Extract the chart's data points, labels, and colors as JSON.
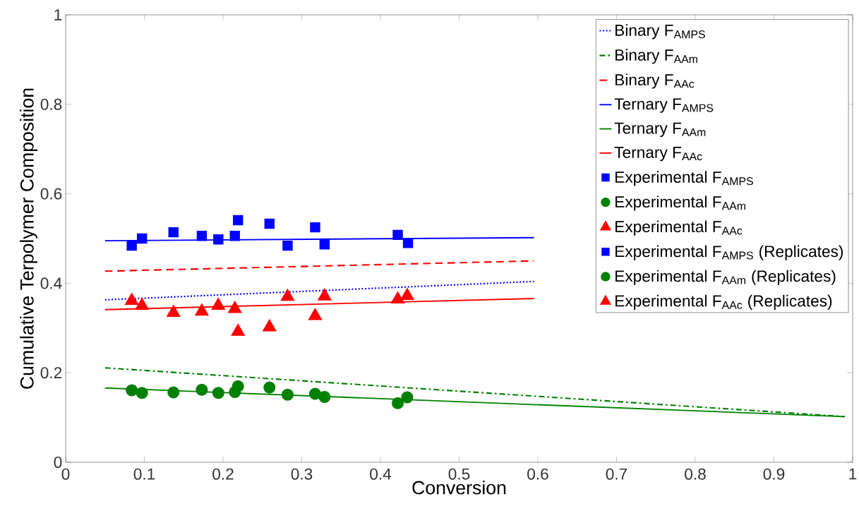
{
  "chart_data": {
    "type": "scatter",
    "xlabel": "Conversion",
    "ylabel": "Cumulative Terpolymer Composition",
    "xlim": [
      0,
      1
    ],
    "ylim": [
      0,
      1
    ],
    "xticks": [
      0,
      0.1,
      0.2,
      0.3,
      0.4,
      0.5,
      0.6,
      0.7,
      0.8,
      0.9,
      1
    ],
    "yticks": [
      0,
      0.2,
      0.4,
      0.6,
      0.8,
      1
    ],
    "grid": false,
    "legend": "top right",
    "series": [
      {
        "name": "Binary F$_{AMPS}$",
        "type": "line",
        "line_style": "dotted",
        "marker": "none",
        "color": "#0000ff",
        "x": [
          0.05,
          0.595
        ],
        "values": [
          0.363,
          0.404
        ]
      },
      {
        "name": "Binary F$_{AAm}$",
        "type": "line",
        "line_style": "dashdot",
        "marker": "none",
        "color": "#008000",
        "x": [
          0.05,
          0.99
        ],
        "values": [
          0.211,
          0.102
        ]
      },
      {
        "name": "Binary F$_{AAc}$",
        "type": "line",
        "line_style": "dashed",
        "marker": "none",
        "color": "#ff0000",
        "x": [
          0.05,
          0.595
        ],
        "values": [
          0.427,
          0.45
        ]
      },
      {
        "name": "Ternary F$_{AMPS}$",
        "type": "line",
        "line_style": "solid",
        "marker": "none",
        "color": "#0000ff",
        "x": [
          0.05,
          0.595
        ],
        "values": [
          0.495,
          0.502
        ]
      },
      {
        "name": "Ternary F$_{AAm}$",
        "type": "line",
        "line_style": "solid",
        "marker": "none",
        "color": "#008000",
        "x": [
          0.05,
          0.99
        ],
        "values": [
          0.166,
          0.102
        ]
      },
      {
        "name": "Ternary F$_{AAc}$",
        "type": "line",
        "line_style": "solid",
        "marker": "none",
        "color": "#ff0000",
        "x": [
          0.05,
          0.595
        ],
        "values": [
          0.341,
          0.366
        ]
      },
      {
        "name": "Experimental F$_{AMPS}$",
        "marker": "square",
        "color": "#0000ff",
        "x": [
          0.084,
          0.097,
          0.137,
          0.173,
          0.194,
          0.215,
          0.282,
          0.329,
          0.422,
          0.435
        ],
        "values": [
          0.484,
          0.5,
          0.514,
          0.506,
          0.498,
          0.506,
          0.484,
          0.487,
          0.508,
          0.49
        ]
      },
      {
        "name": "Experimental F$_{AAm}$",
        "marker": "circle",
        "color": "#008000",
        "x": [
          0.084,
          0.097,
          0.137,
          0.173,
          0.194,
          0.215,
          0.282,
          0.329,
          0.422,
          0.434
        ],
        "values": [
          0.161,
          0.155,
          0.156,
          0.162,
          0.155,
          0.157,
          0.151,
          0.146,
          0.132,
          0.145
        ]
      },
      {
        "name": "Experimental F$_{AAc}$",
        "marker": "triangle",
        "color": "#ff0000",
        "x": [
          0.084,
          0.097,
          0.137,
          0.173,
          0.194,
          0.215,
          0.282,
          0.329,
          0.422,
          0.434
        ],
        "values": [
          0.361,
          0.35,
          0.334,
          0.337,
          0.35,
          0.343,
          0.37,
          0.371,
          0.364,
          0.372
        ]
      },
      {
        "name": "Experimental F$_{AMPS}$ (Replicates)",
        "marker": "square",
        "color": "#0000ff",
        "x": [
          0.219,
          0.259,
          0.317
        ],
        "values": [
          0.541,
          0.533,
          0.525
        ]
      },
      {
        "name": "Experimental F$_{AAm}$ (Replicates)",
        "marker": "circle",
        "color": "#008000",
        "x": [
          0.219,
          0.259,
          0.317
        ],
        "values": [
          0.17,
          0.167,
          0.153
        ]
      },
      {
        "name": "Experimental F$_{AAc}$ (Replicates)",
        "marker": "triangle",
        "color": "#ff0000",
        "x": [
          0.219,
          0.259,
          0.317
        ],
        "values": [
          0.292,
          0.302,
          0.327
        ]
      }
    ]
  }
}
